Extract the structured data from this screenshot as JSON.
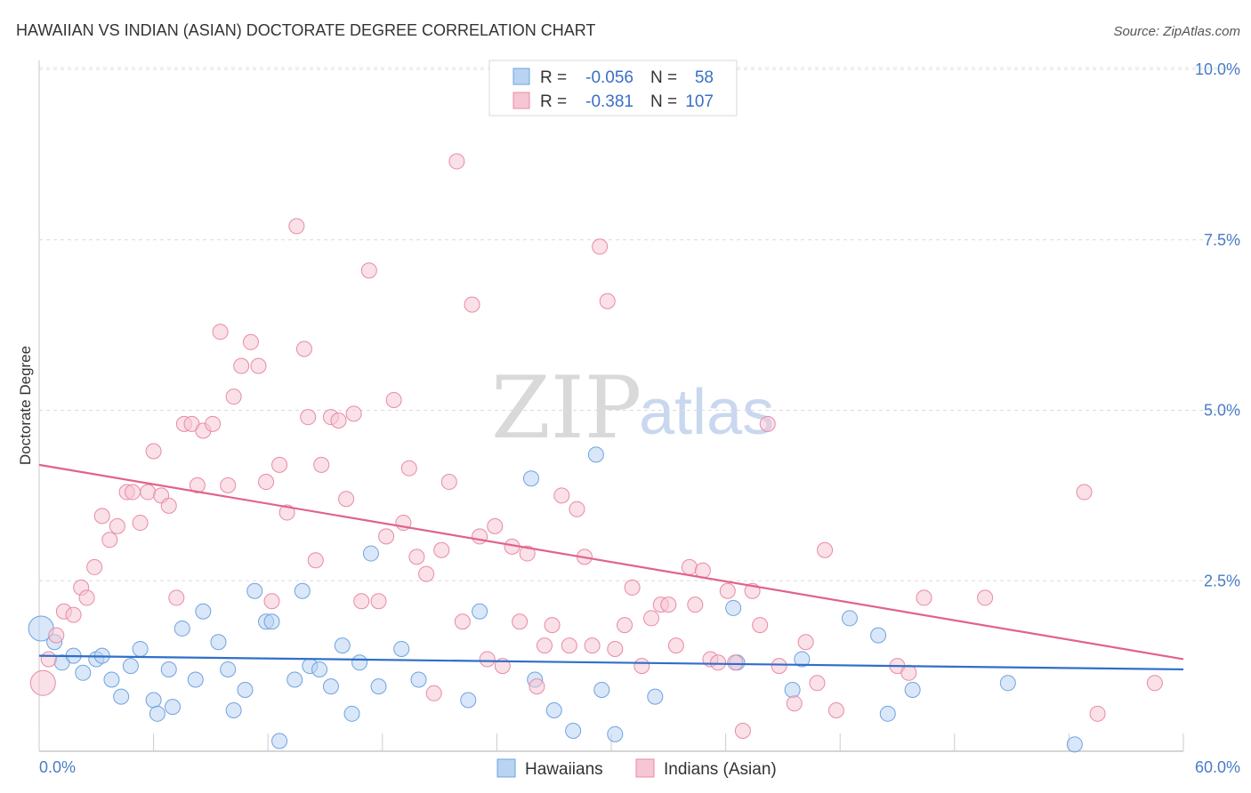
{
  "chart_data": {
    "type": "scatter",
    "title": "HAWAIIAN VS INDIAN (ASIAN) DOCTORATE DEGREE CORRELATION CHART",
    "source": "Source: ZipAtlas.com",
    "ylabel": "Doctorate Degree",
    "xlim": [
      0,
      60
    ],
    "ylim": [
      0,
      10
    ],
    "x_tick_labels": [
      "0.0%",
      "60.0%"
    ],
    "y_ticks": [
      {
        "value": 2.5,
        "label": "2.5%"
      },
      {
        "value": 5.0,
        "label": "5.0%"
      },
      {
        "value": 7.5,
        "label": "7.5%"
      },
      {
        "value": 10.0,
        "label": "10.0%"
      }
    ],
    "legend": [
      {
        "r_label": "R =",
        "r_value": "-0.056",
        "n_label": "N =",
        "n_value": "58"
      },
      {
        "r_label": "R =",
        "r_value": "-0.381",
        "n_label": "N =",
        "n_value": "107"
      }
    ],
    "watermark": {
      "zip": "ZIP",
      "atlas": "atlas"
    },
    "series": [
      {
        "name": "Hawaiians",
        "color": "#6fa3e0",
        "fill": "#b9d3f2",
        "trend": [
          [
            0,
            1.4
          ],
          [
            60,
            1.2
          ]
        ],
        "points": [
          [
            0.1,
            1.8
          ],
          [
            0.8,
            1.6
          ],
          [
            1.2,
            1.3
          ],
          [
            1.8,
            1.4
          ],
          [
            2.3,
            1.15
          ],
          [
            3.0,
            1.35
          ],
          [
            3.3,
            1.4
          ],
          [
            3.8,
            1.05
          ],
          [
            4.3,
            0.8
          ],
          [
            4.8,
            1.25
          ],
          [
            5.3,
            1.5
          ],
          [
            6.0,
            0.75
          ],
          [
            6.2,
            0.55
          ],
          [
            6.8,
            1.2
          ],
          [
            7.0,
            0.65
          ],
          [
            7.5,
            1.8
          ],
          [
            8.2,
            1.05
          ],
          [
            8.6,
            2.05
          ],
          [
            9.4,
            1.6
          ],
          [
            9.9,
            1.2
          ],
          [
            10.2,
            0.6
          ],
          [
            10.8,
            0.9
          ],
          [
            11.3,
            2.35
          ],
          [
            11.9,
            1.9
          ],
          [
            12.2,
            1.9
          ],
          [
            12.6,
            0.15
          ],
          [
            13.4,
            1.05
          ],
          [
            13.8,
            2.35
          ],
          [
            14.2,
            1.25
          ],
          [
            14.7,
            1.2
          ],
          [
            15.3,
            0.95
          ],
          [
            15.9,
            1.55
          ],
          [
            16.4,
            0.55
          ],
          [
            16.8,
            1.3
          ],
          [
            17.4,
            2.9
          ],
          [
            17.8,
            0.95
          ],
          [
            19.0,
            1.5
          ],
          [
            19.9,
            1.05
          ],
          [
            22.5,
            0.75
          ],
          [
            23.1,
            2.05
          ],
          [
            25.8,
            4.0
          ],
          [
            26.0,
            1.05
          ],
          [
            27.0,
            0.6
          ],
          [
            28.0,
            0.3
          ],
          [
            29.2,
            4.35
          ],
          [
            29.5,
            0.9
          ],
          [
            30.2,
            0.25
          ],
          [
            32.3,
            0.8
          ],
          [
            36.4,
            2.1
          ],
          [
            36.6,
            1.3
          ],
          [
            40.0,
            1.35
          ],
          [
            39.5,
            0.9
          ],
          [
            42.5,
            1.95
          ],
          [
            44.0,
            1.7
          ],
          [
            44.5,
            0.55
          ],
          [
            45.8,
            0.9
          ],
          [
            50.8,
            1.0
          ],
          [
            54.3,
            0.1
          ]
        ]
      },
      {
        "name": "Indians (Asian)",
        "color": "#e88aa6",
        "fill": "#f6c6d4",
        "trend": [
          [
            0,
            4.2
          ],
          [
            60,
            1.35
          ]
        ],
        "points": [
          [
            0.2,
            1.0
          ],
          [
            0.5,
            1.35
          ],
          [
            0.9,
            1.7
          ],
          [
            1.3,
            2.05
          ],
          [
            1.8,
            2.0
          ],
          [
            2.2,
            2.4
          ],
          [
            2.5,
            2.25
          ],
          [
            2.9,
            2.7
          ],
          [
            3.3,
            3.45
          ],
          [
            3.7,
            3.1
          ],
          [
            4.1,
            3.3
          ],
          [
            4.6,
            3.8
          ],
          [
            4.9,
            3.8
          ],
          [
            5.3,
            3.35
          ],
          [
            5.7,
            3.8
          ],
          [
            6.0,
            4.4
          ],
          [
            6.4,
            3.75
          ],
          [
            6.8,
            3.6
          ],
          [
            7.2,
            2.25
          ],
          [
            7.6,
            4.8
          ],
          [
            8.0,
            4.8
          ],
          [
            8.3,
            3.9
          ],
          [
            8.6,
            4.7
          ],
          [
            9.1,
            4.8
          ],
          [
            9.5,
            6.15
          ],
          [
            9.9,
            3.9
          ],
          [
            10.2,
            5.2
          ],
          [
            10.6,
            5.65
          ],
          [
            11.1,
            6.0
          ],
          [
            11.5,
            5.65
          ],
          [
            11.9,
            3.95
          ],
          [
            12.2,
            2.2
          ],
          [
            12.6,
            4.2
          ],
          [
            13.0,
            3.5
          ],
          [
            13.5,
            7.7
          ],
          [
            13.9,
            5.9
          ],
          [
            14.1,
            4.9
          ],
          [
            14.5,
            2.8
          ],
          [
            14.8,
            4.2
          ],
          [
            15.3,
            4.9
          ],
          [
            15.7,
            4.85
          ],
          [
            16.1,
            3.7
          ],
          [
            16.5,
            4.95
          ],
          [
            16.9,
            2.2
          ],
          [
            17.3,
            7.05
          ],
          [
            17.8,
            2.2
          ],
          [
            18.2,
            3.15
          ],
          [
            18.6,
            5.15
          ],
          [
            19.1,
            3.35
          ],
          [
            19.4,
            4.15
          ],
          [
            19.8,
            2.85
          ],
          [
            20.3,
            2.6
          ],
          [
            20.7,
            0.85
          ],
          [
            21.1,
            2.95
          ],
          [
            21.5,
            3.95
          ],
          [
            21.9,
            8.65
          ],
          [
            22.2,
            1.9
          ],
          [
            22.7,
            6.55
          ],
          [
            23.1,
            3.15
          ],
          [
            23.5,
            1.35
          ],
          [
            23.9,
            3.3
          ],
          [
            24.3,
            1.25
          ],
          [
            24.8,
            3.0
          ],
          [
            25.2,
            1.9
          ],
          [
            25.6,
            2.9
          ],
          [
            26.1,
            0.95
          ],
          [
            26.5,
            1.55
          ],
          [
            26.9,
            1.85
          ],
          [
            27.4,
            3.75
          ],
          [
            27.8,
            1.55
          ],
          [
            28.2,
            3.55
          ],
          [
            28.6,
            2.85
          ],
          [
            29.0,
            1.55
          ],
          [
            29.4,
            7.4
          ],
          [
            29.8,
            6.6
          ],
          [
            30.2,
            1.5
          ],
          [
            30.7,
            1.85
          ],
          [
            31.1,
            2.4
          ],
          [
            31.6,
            1.25
          ],
          [
            32.1,
            1.95
          ],
          [
            32.6,
            2.15
          ],
          [
            33.0,
            2.15
          ],
          [
            33.4,
            1.55
          ],
          [
            34.1,
            2.7
          ],
          [
            34.4,
            2.15
          ],
          [
            34.8,
            2.65
          ],
          [
            35.2,
            1.35
          ],
          [
            35.6,
            1.3
          ],
          [
            36.1,
            2.35
          ],
          [
            36.5,
            1.3
          ],
          [
            36.9,
            0.3
          ],
          [
            37.4,
            2.35
          ],
          [
            37.8,
            1.85
          ],
          [
            38.2,
            4.8
          ],
          [
            38.8,
            1.25
          ],
          [
            39.6,
            0.7
          ],
          [
            40.2,
            1.6
          ],
          [
            40.8,
            1.0
          ],
          [
            41.2,
            2.95
          ],
          [
            41.8,
            0.6
          ],
          [
            45.0,
            1.25
          ],
          [
            45.6,
            1.15
          ],
          [
            46.4,
            2.25
          ],
          [
            49.6,
            2.25
          ],
          [
            54.8,
            3.8
          ],
          [
            55.5,
            0.55
          ],
          [
            58.5,
            1.0
          ]
        ]
      }
    ]
  }
}
